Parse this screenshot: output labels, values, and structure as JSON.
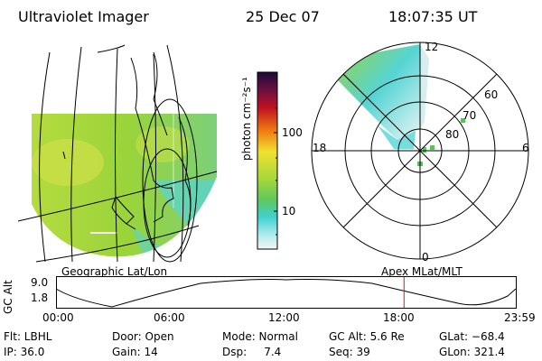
{
  "header": {
    "instrument": "Ultraviolet Imager",
    "date": "25 Dec 07",
    "time": "18:07:35 UT"
  },
  "colorbar": {
    "unit_label": "photon cm⁻²s⁻¹",
    "ticks": [
      "100",
      "10"
    ],
    "log_scale": true
  },
  "polar_plot": {
    "mlt_labels": [
      "12",
      "18",
      "6",
      "0"
    ],
    "mlat_labels": [
      "60",
      "70",
      "80"
    ]
  },
  "panel_labels": {
    "geographic": "Geographic Lat/Lon",
    "apex": "Apex  MLat/MLT"
  },
  "altitude_plot": {
    "axis_label": "GC Alt",
    "y_ticks": [
      "9.0",
      "1.8"
    ],
    "x_ticks": [
      "00:00",
      "06:00",
      "12:00",
      "18:00",
      "23:59"
    ],
    "current_time_marker_hours": 18.13,
    "marker_color": "#c0202a"
  },
  "status": {
    "filter": "Flt: LBHL",
    "door": "Door: Open",
    "mode": "Mode: Normal",
    "gc_alt": "GC Alt: 5.6 Re",
    "glat": "GLat: −68.4",
    "ip": "IP: 36.0",
    "gain": "Gain: 14",
    "dsp": "Dsp:     7.4",
    "seq": "Seq: 39",
    "glon": "GLon: 321.4"
  },
  "colors": {
    "aurora_green": "#9ad43a",
    "aurora_cyan": "#56d4d4",
    "aurora_yellow": "#cfe04a"
  }
}
